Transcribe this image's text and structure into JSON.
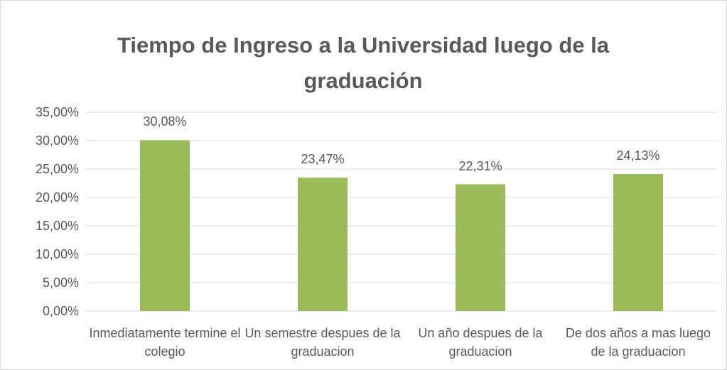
{
  "chart_data": {
    "type": "bar",
    "title": "Tiempo de Ingreso a la Universidad luego de la graduación",
    "categories": [
      "Inmediatamente termine el colegio",
      "Un semestre despues de la graduacion",
      "Un año despues de la graduacion",
      "De dos años a mas luego de la graduacion"
    ],
    "values": [
      30.08,
      23.47,
      22.31,
      24.13
    ],
    "value_labels": [
      "30,08%",
      "23,47%",
      "22,31%",
      "24,13%"
    ],
    "color": "#9bbb59",
    "ylim": [
      0,
      35
    ],
    "yticks": [
      {
        "value": 0,
        "label": "0,00%"
      },
      {
        "value": 5,
        "label": "5,00%"
      },
      {
        "value": 10,
        "label": "10,00%"
      },
      {
        "value": 15,
        "label": "15,00%"
      },
      {
        "value": 20,
        "label": "20,00%"
      },
      {
        "value": 25,
        "label": "25,00%"
      },
      {
        "value": 30,
        "label": "30,00%"
      },
      {
        "value": 35,
        "label": "35,00%"
      }
    ],
    "grid": true
  }
}
